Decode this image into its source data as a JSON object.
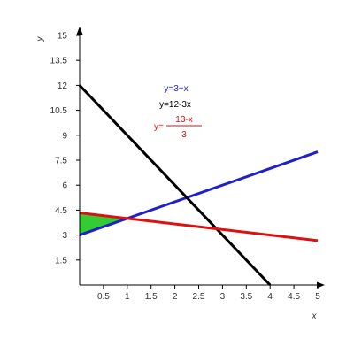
{
  "chart_data": {
    "type": "line",
    "xlabel": "x",
    "ylabel": "y",
    "xlim": [
      0,
      5
    ],
    "ylim": [
      0,
      15
    ],
    "grid": false,
    "x_ticks": [
      0.5,
      1,
      1.5,
      2,
      2.5,
      3,
      3.5,
      4,
      4.5,
      5
    ],
    "y_ticks": [
      1.5,
      3,
      4.5,
      6,
      7.5,
      9,
      10.5,
      12,
      13.5,
      15
    ],
    "series": [
      {
        "name": "y=3+x",
        "color": "#1f1fcc",
        "x": [
          0,
          5
        ],
        "y": [
          3,
          8
        ]
      },
      {
        "name": "y=12-3x",
        "color": "#000000",
        "x": [
          0,
          4
        ],
        "y": [
          12,
          0
        ]
      },
      {
        "name": "y=(13-x)/3",
        "color": "#dd1111",
        "x": [
          0,
          5
        ],
        "y": [
          4.333,
          2.667
        ]
      }
    ],
    "shaded_region": {
      "color": "#33cc33",
      "vertices": [
        [
          0,
          3
        ],
        [
          1,
          4
        ],
        [
          0,
          4.333
        ]
      ]
    },
    "legend": {
      "placement": "top-center",
      "blue_label": "y=3+x",
      "black_label": "y=12-3x",
      "red_prefix": "y=",
      "red_numerator": "13-x",
      "red_denominator": "3"
    }
  }
}
